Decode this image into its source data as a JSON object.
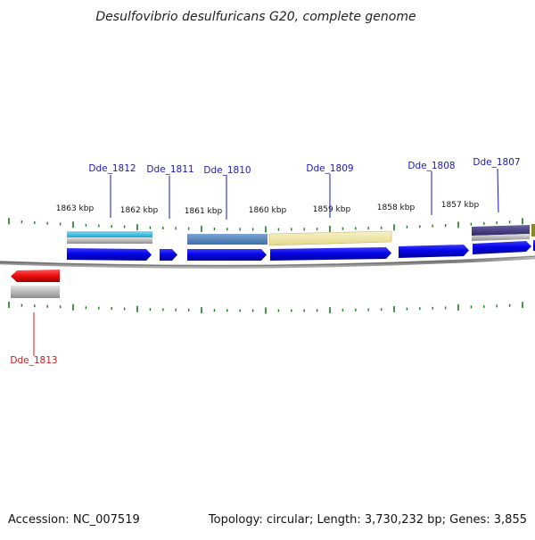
{
  "title": "Desulfovibrio desulfuricans G20, complete genome",
  "accession_text": "Accession: NC_007519",
  "summary_text": "Topology: circular; Length: 3,730,232 bp; Genes: 3,855",
  "colors": {
    "tick": "#1a7a1a",
    "gene_label_forward": "#1a1ab4",
    "gene_label_reverse": "#cc1a1a",
    "arrow_forward": "#0a0ae6",
    "arrow_reverse": "#ee1111",
    "backbone": "#777777"
  },
  "kbp_labels": [
    "1863 kbp",
    "1862 kbp",
    "1861 kbp",
    "1860 kbp",
    "1859 kbp",
    "1858 kbp",
    "1857 kbp"
  ],
  "genes_forward": [
    "Dde_1812",
    "Dde_1811",
    "Dde_1810",
    "Dde_1809",
    "Dde_1808",
    "Dde_1807"
  ],
  "genes_reverse": [
    "Dde_1813"
  ],
  "feature_colors": {
    "Dde_1812": "#22b8e0",
    "Dde_1810": "#4a7fb8",
    "Dde_1809": "#ece4a0",
    "Dde_1807": "#443a7a",
    "partial": "#8a8a2a"
  }
}
